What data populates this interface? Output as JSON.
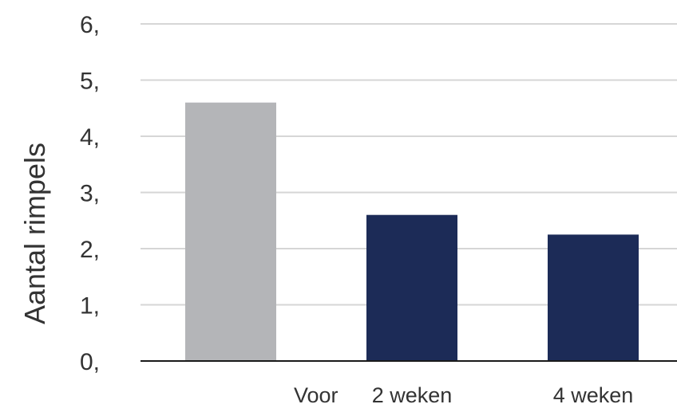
{
  "chart_data": {
    "type": "bar",
    "title": "",
    "xlabel": "",
    "ylabel": "Aantal rimpels",
    "categories": [
      "Voor",
      "2 weken",
      "4 weken"
    ],
    "values": [
      4.6,
      2.6,
      2.25
    ],
    "bar_colors": [
      "#b4b5b8",
      "#1c2b57",
      "#1c2b57"
    ],
    "ylim": [
      0,
      6
    ],
    "yticks": [
      0,
      1,
      2,
      3,
      4,
      5,
      6
    ],
    "ytick_labels": [
      "0,",
      "1,",
      "2,",
      "3,",
      "4,",
      "5,",
      "6,"
    ],
    "grid": true,
    "legend": "none"
  }
}
